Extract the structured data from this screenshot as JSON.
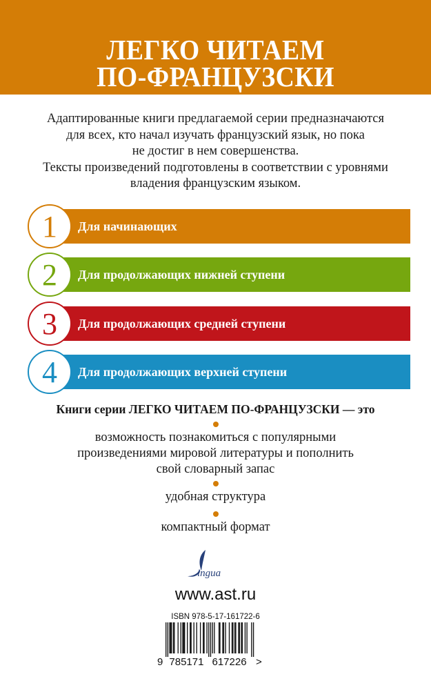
{
  "colors": {
    "orange": "#d47d06",
    "green": "#76a70f",
    "red": "#c0151b",
    "blue": "#1a8ec2"
  },
  "header": {
    "title_line1": "ЛЕГКО ЧИТАЕМ",
    "title_line2": "ПО-ФРАНЦУЗСКИ"
  },
  "intro": {
    "lines": [
      "Адаптированные книги предлагаемой серии предназначаются",
      "для всех, кто начал изучать французский язык, но пока",
      "не достиг в нем совершенства.",
      "Тексты произведений подготовлены в соответствии с уровнями",
      "владения французским языком."
    ]
  },
  "levels": [
    {
      "number": "1",
      "label": "Для начинающих",
      "color": "#d47d06"
    },
    {
      "number": "2",
      "label": "Для продолжающих нижней ступени",
      "color": "#76a70f"
    },
    {
      "number": "3",
      "label": "Для продолжающих средней ступени",
      "color": "#c0151b"
    },
    {
      "number": "4",
      "label": "Для продолжающих верхней ступени",
      "color": "#1a8ec2"
    }
  ],
  "features": {
    "lead": "Книги серии ЛЕГКО ЧИТАЕМ ПО-ФРАНЦУЗСКИ — это",
    "items": [
      [
        "возможность познакомиться с популярными",
        "произведениями мировой литературы и пополнить",
        "свой словарный запас"
      ],
      [
        "удобная структура"
      ],
      [
        "компактный формат"
      ]
    ]
  },
  "publisher": {
    "logo_text": "Lingua",
    "website": "www.ast.ru"
  },
  "isbn": {
    "label": "ISBN 978-5-17-161722-6",
    "barcode_digits": "9785171617226"
  }
}
